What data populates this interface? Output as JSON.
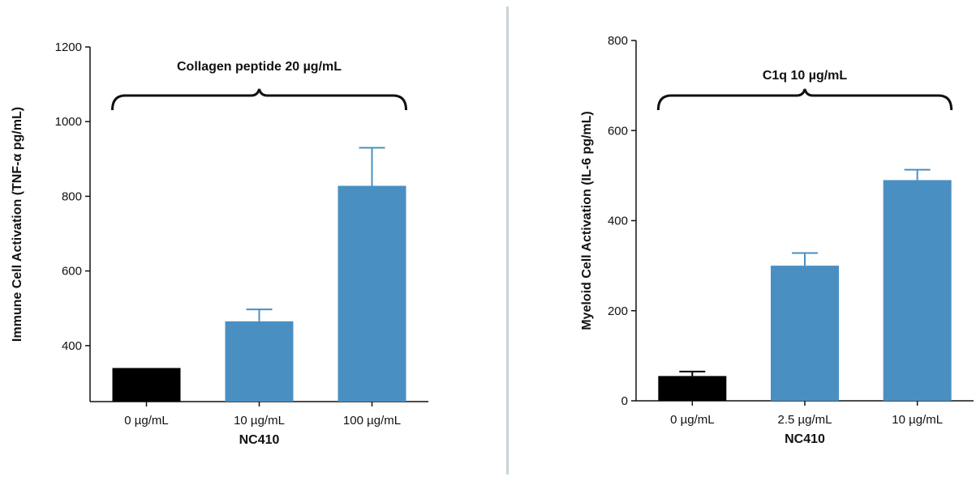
{
  "charts": [
    {
      "chart_data": {
        "type": "bar",
        "categories": [
          "0 µg/mL",
          "10 µg/mL",
          "100 µg/mL"
        ],
        "values": [
          340,
          465,
          828
        ],
        "error_upper": [
          340,
          497,
          930
        ],
        "bar_colors": [
          "#000000",
          "#4a8fc2",
          "#4a8fc2"
        ],
        "xlabel": "NC410",
        "ylabel": "Immune Cell Activation (TNF-α pg/mL)",
        "yticks": [
          400,
          600,
          800,
          1000,
          1200
        ],
        "ylim": [
          250,
          1200
        ],
        "annotation": "Collagen peptide 20 µg/mL",
        "grid": false
      }
    },
    {
      "chart_data": {
        "type": "bar",
        "categories": [
          "0 µg/mL",
          "2.5 µg/mL",
          "10 µg/mL"
        ],
        "values": [
          55,
          300,
          490
        ],
        "error_upper": [
          65,
          328,
          513
        ],
        "bar_colors": [
          "#000000",
          "#4a8fc2",
          "#4a8fc2"
        ],
        "xlabel": "NC410",
        "ylabel": "Myeloid Cell Activation (IL-6 pg/mL)",
        "yticks": [
          0,
          200,
          400,
          600,
          800
        ],
        "ylim": [
          0,
          800
        ],
        "annotation": "C1q 10 µg/mL",
        "grid": false
      }
    }
  ]
}
